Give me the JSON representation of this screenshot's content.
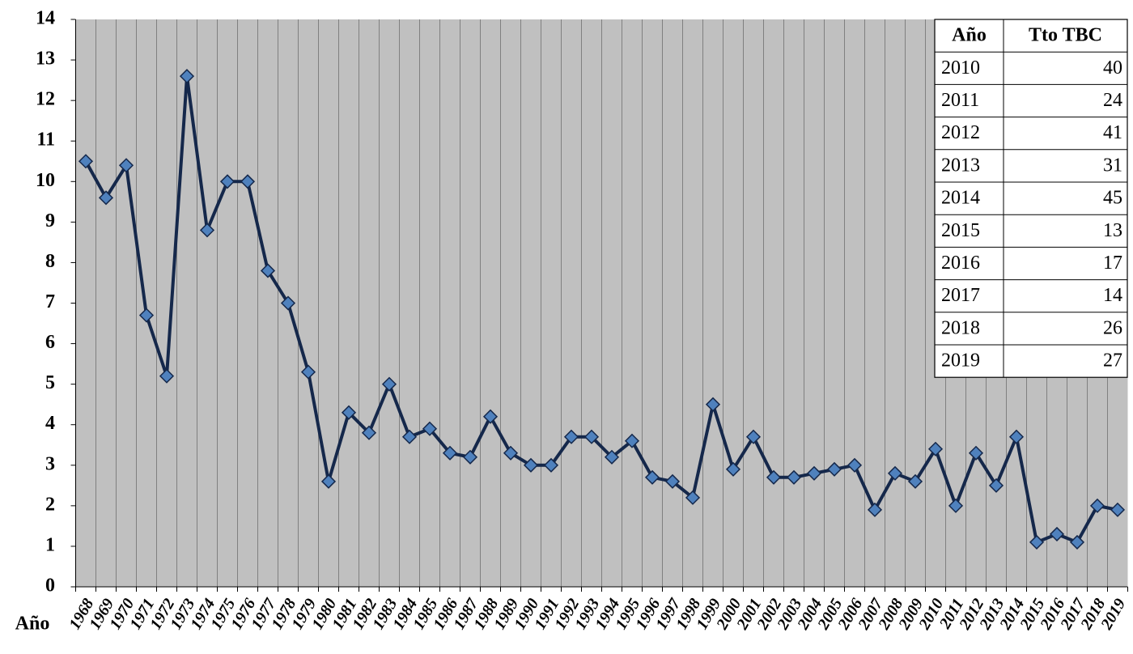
{
  "chart_data": {
    "type": "line",
    "xlabel": "Año",
    "x": [
      1968,
      1969,
      1970,
      1971,
      1972,
      1973,
      1974,
      1975,
      1976,
      1977,
      1978,
      1979,
      1980,
      1981,
      1982,
      1983,
      1984,
      1985,
      1986,
      1987,
      1988,
      1989,
      1990,
      1991,
      1992,
      1993,
      1994,
      1995,
      1996,
      1997,
      1998,
      1999,
      2000,
      2001,
      2002,
      2003,
      2004,
      2005,
      2006,
      2007,
      2008,
      2009,
      2010,
      2011,
      2012,
      2013,
      2014,
      2015,
      2016,
      2017,
      2018,
      2019
    ],
    "series": [
      {
        "color": "#15284b",
        "marker_color": "#4f81bd",
        "values": [
          10.5,
          9.6,
          10.4,
          6.7,
          5.2,
          12.6,
          8.8,
          10.0,
          10.0,
          7.8,
          7.0,
          5.3,
          2.6,
          4.3,
          3.8,
          5.0,
          3.7,
          3.9,
          3.3,
          3.2,
          4.2,
          3.3,
          3.0,
          3.0,
          3.7,
          3.7,
          3.2,
          3.6,
          2.7,
          2.6,
          2.2,
          4.5,
          2.9,
          3.7,
          2.7,
          2.7,
          2.8,
          2.9,
          3.0,
          1.9,
          2.8,
          2.6,
          3.4,
          2.0,
          3.3,
          2.5,
          3.7,
          1.1,
          1.3,
          1.1,
          2.0,
          1.9
        ]
      }
    ],
    "xlim": [
      1967.5,
      2019.5
    ],
    "ylim": [
      0,
      14
    ],
    "yticks": [
      0,
      1,
      2,
      3,
      4,
      5,
      6,
      7,
      8,
      9,
      10,
      11,
      12,
      13,
      14
    ],
    "grid": true,
    "background": "#c0c0c0"
  },
  "table": {
    "header": [
      "Año",
      "Tto TBC"
    ],
    "rows": [
      [
        2010,
        40
      ],
      [
        2011,
        24
      ],
      [
        2012,
        41
      ],
      [
        2013,
        31
      ],
      [
        2014,
        45
      ],
      [
        2015,
        13
      ],
      [
        2016,
        17
      ],
      [
        2017,
        14
      ],
      [
        2018,
        26
      ],
      [
        2019,
        27
      ]
    ]
  }
}
